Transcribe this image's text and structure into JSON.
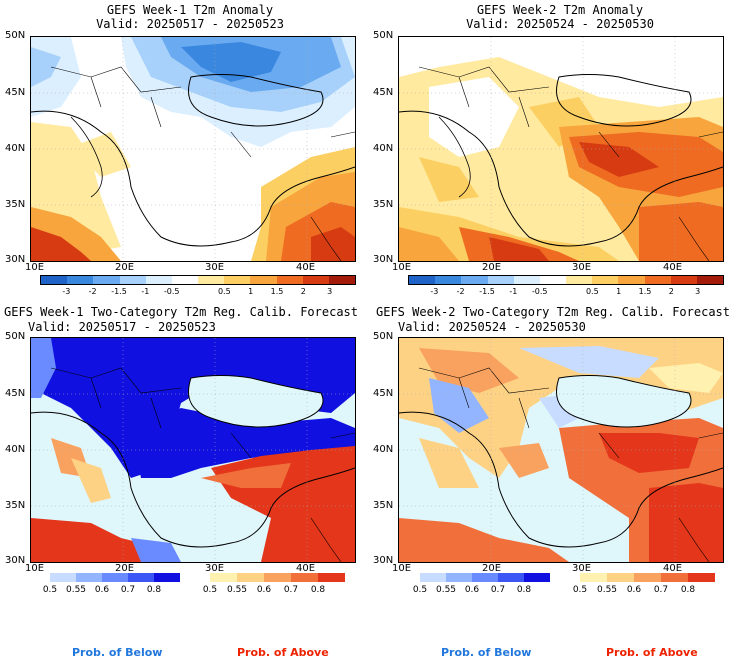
{
  "colors": {
    "sea": "#dff6fb",
    "anomaly_scale": [
      "#1f63c8",
      "#3987df",
      "#6aaaf0",
      "#a7d1fa",
      "#dcefff",
      "#ffffff",
      "#ffeaa0",
      "#fccf62",
      "#f7a53c",
      "#ee6b21",
      "#d63b12",
      "#a31b0b"
    ],
    "prob_below": [
      "#c7dcff",
      "#93b5ff",
      "#6a8bff",
      "#3c55f5",
      "#1010e0"
    ],
    "prob_above": [
      "#fff1b0",
      "#fdd284",
      "#f9a25f",
      "#f06f3a",
      "#e3361a"
    ],
    "footer_below": "#2277dd",
    "footer_above": "#ee2200"
  },
  "panels": [
    {
      "title_line1": "GEFS Week-1 T2m Anomaly",
      "title_line2": "Valid: 20250517 - 20250523",
      "kind": "anomaly"
    },
    {
      "title_line1": "GEFS Week-2 T2m Anomaly",
      "title_line2": "Valid: 20250524 - 20250530",
      "kind": "anomaly"
    },
    {
      "title_line1": "GEFS Week-1 Two-Category T2m Reg. Calib. Forecast",
      "title_line2": "Valid: 20250517 - 20250523",
      "kind": "probability"
    },
    {
      "title_line1": "GEFS Week-2 Two-Category T2m Reg. Calib. Forecast",
      "title_line2": "Valid: 20250524 - 20250530",
      "kind": "probability"
    }
  ],
  "axes": {
    "lat_labels": [
      "50N",
      "45N",
      "40N",
      "35N",
      "30N"
    ],
    "lon_labels": [
      "10E",
      "20E",
      "30E",
      "40E"
    ]
  },
  "anomaly_colorbar": {
    "ticks": [
      "-3",
      "-2",
      "-1.5",
      "-1",
      "-0.5",
      "0.5",
      "1",
      "1.5",
      "2",
      "3"
    ]
  },
  "prob_colorbar": {
    "ticks": [
      "0.5",
      "0.55",
      "0.6",
      "0.7",
      "0.8"
    ]
  },
  "footer": {
    "below_label": "Prob. of Below",
    "above_label": "Prob. of Above"
  }
}
